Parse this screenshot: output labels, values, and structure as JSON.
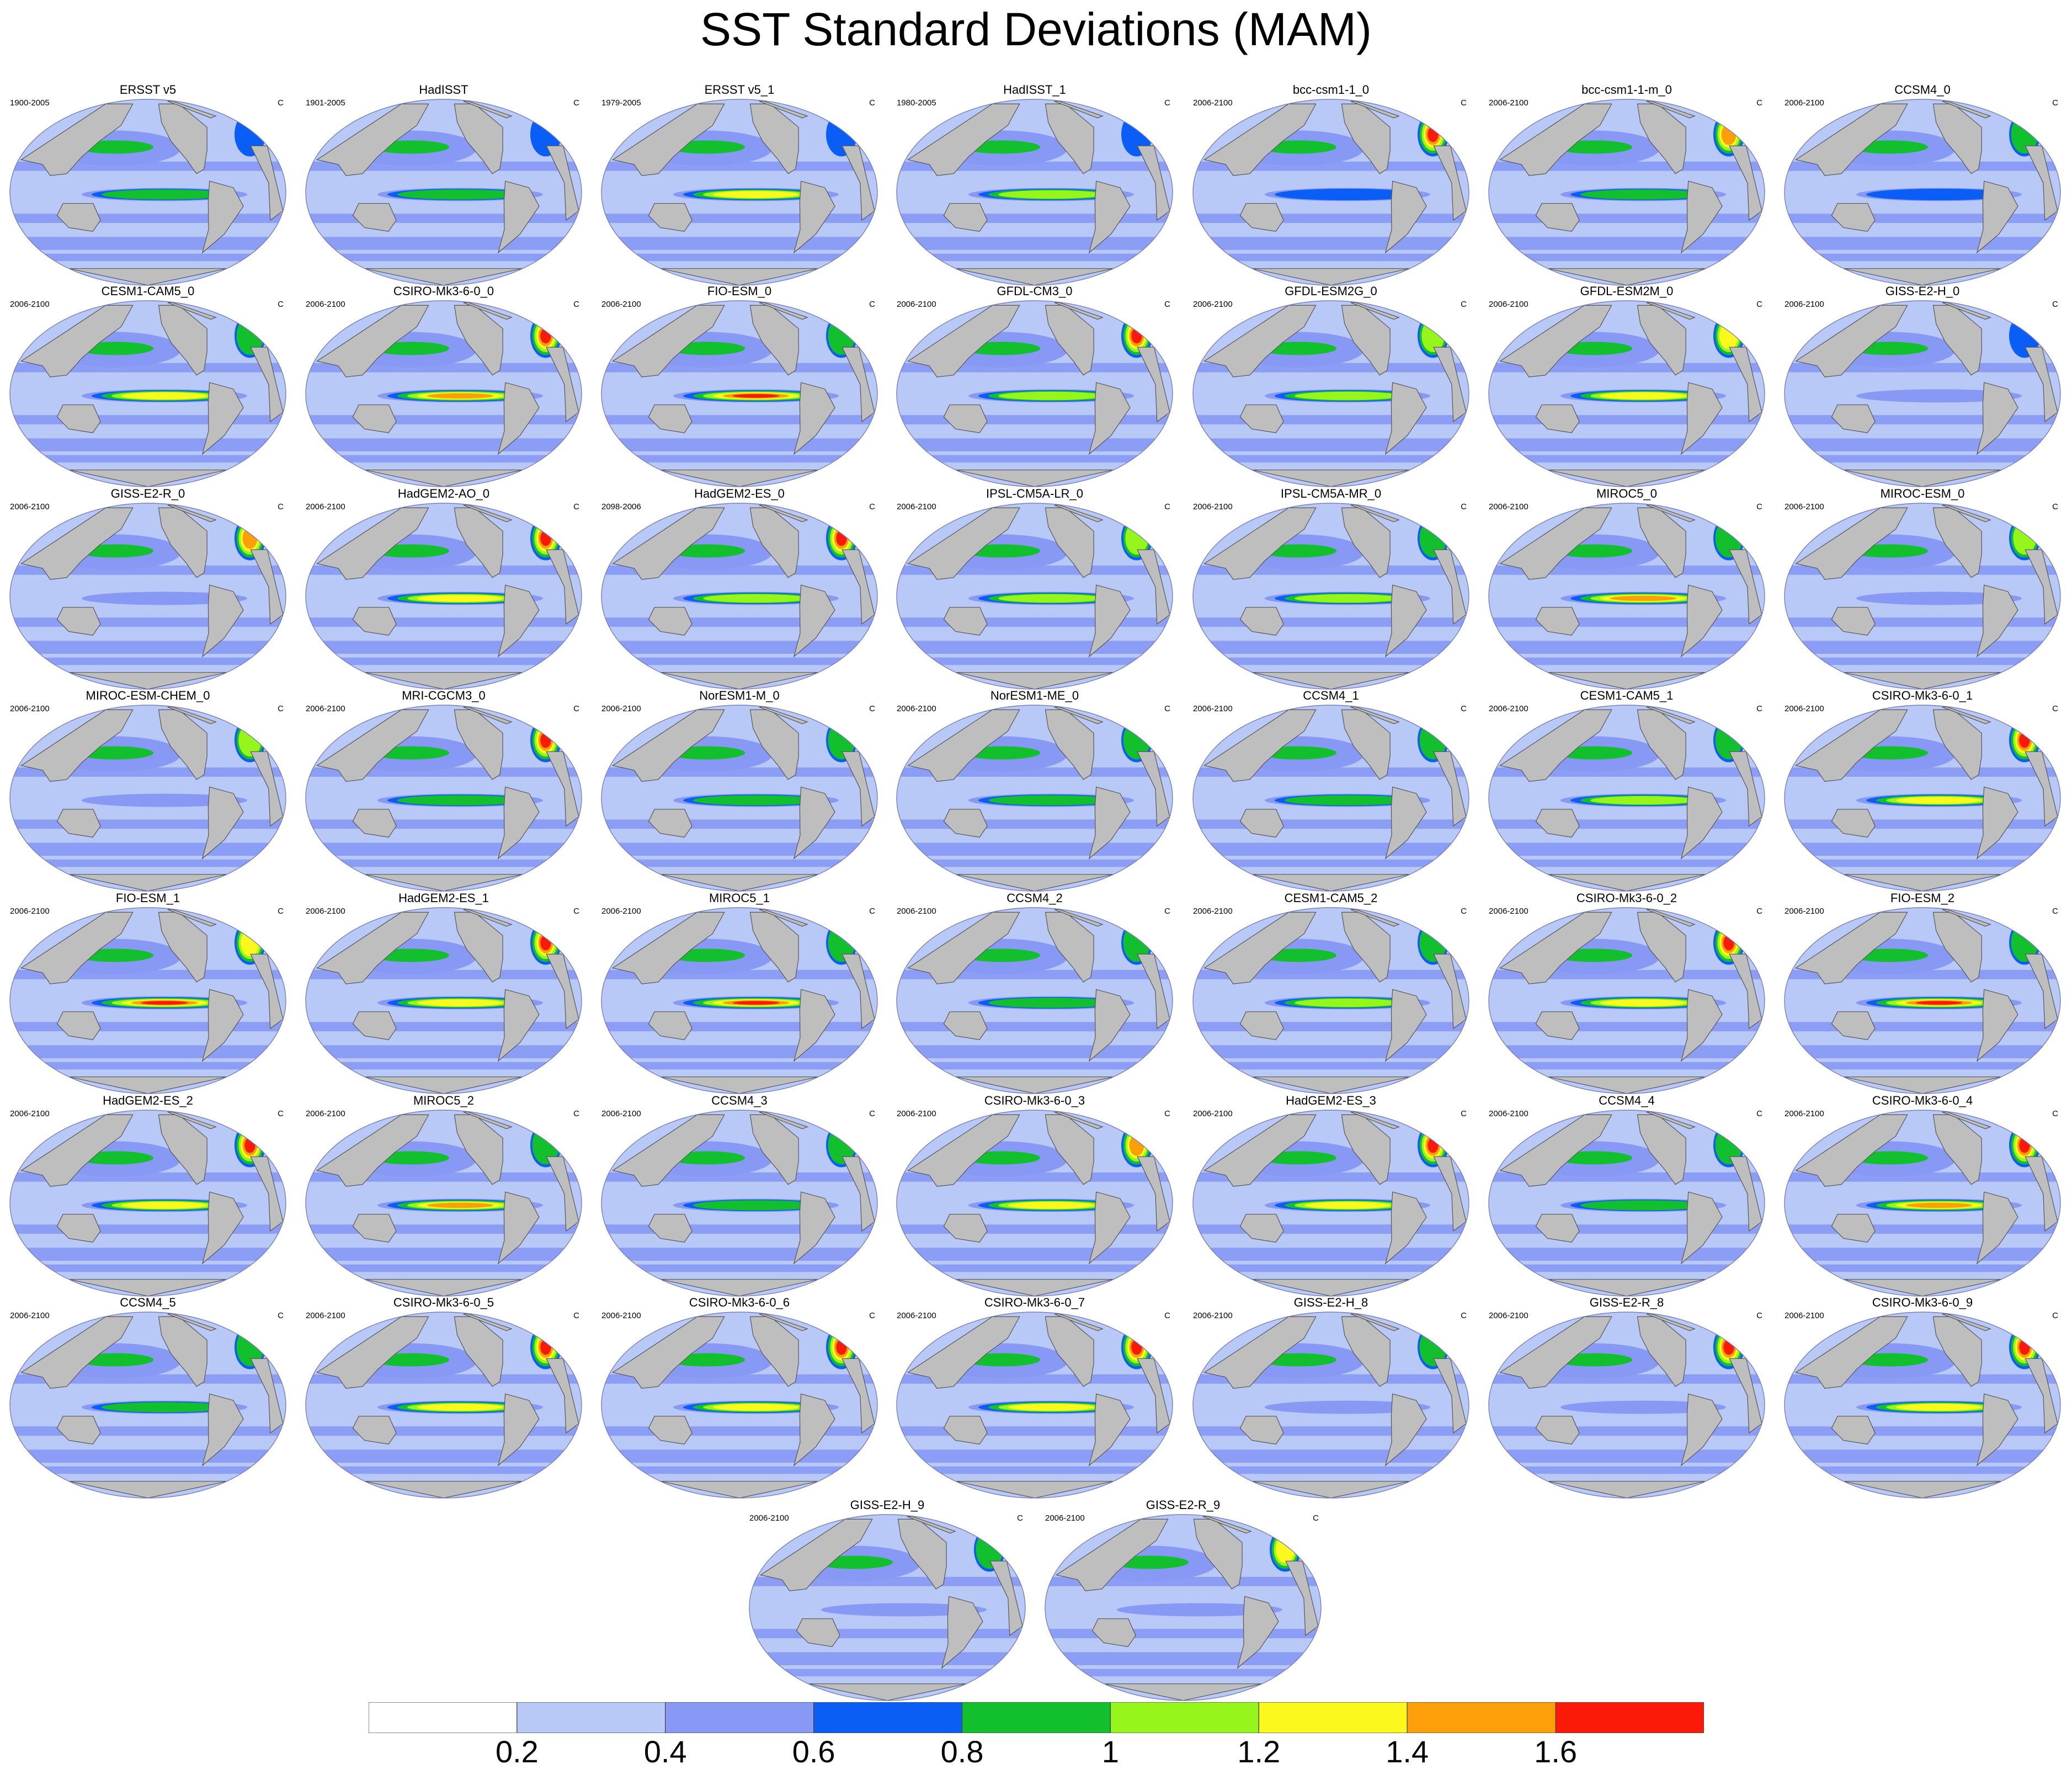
{
  "title": "SST Standard Deviations (MAM)",
  "colors": {
    "land": "#bebebe",
    "coast": "#555555",
    "levels": [
      "#ffffff",
      "#b8c9f8",
      "#8798f5",
      "#0a5df5",
      "#12bf2c",
      "#96f51a",
      "#fbf81d",
      "#fc9f09",
      "#fb1a08"
    ]
  },
  "chart_data": {
    "type": "map-panel-grid",
    "title": "SST Standard Deviations (MAM)",
    "units": "C",
    "colorbar": {
      "ticks": [
        "0.2",
        "0.4",
        "0.6",
        "0.8",
        "1",
        "1.2",
        "1.4",
        "1.6"
      ],
      "bins": [
        "<0.2",
        "0.2-0.4",
        "0.4-0.6",
        "0.6-0.8",
        "0.8-1",
        "1-1.2",
        "1.2-1.4",
        "1.4-1.6",
        ">1.6"
      ]
    },
    "panels": [
      {
        "title": "ERSST v5",
        "period": "1900-2005",
        "units": "C",
        "equatorial_max": "0.8-1",
        "north_atlantic_max": "0.6-0.8"
      },
      {
        "title": "HadISST",
        "period": "1901-2005",
        "units": "C",
        "equatorial_max": "0.8-1",
        "north_atlantic_max": "0.6-0.8"
      },
      {
        "title": "ERSST v5_1",
        "period": "1979-2005",
        "units": "C",
        "equatorial_max": "1.2-1.4",
        "north_atlantic_max": "0.6-0.8"
      },
      {
        "title": "HadISST_1",
        "period": "1980-2005",
        "units": "C",
        "equatorial_max": "1-1.2",
        "north_atlantic_max": "0.6-0.8"
      },
      {
        "title": "bcc-csm1-1_0",
        "period": "2006-2100",
        "units": "C",
        "equatorial_max": "0.6-0.8",
        "north_atlantic_max": ">1.6"
      },
      {
        "title": "bcc-csm1-1-m_0",
        "period": "2006-2100",
        "units": "C",
        "equatorial_max": "0.8-1",
        "north_atlantic_max": "1.4-1.6"
      },
      {
        "title": "CCSM4_0",
        "period": "2006-2100",
        "units": "C",
        "equatorial_max": "0.6-0.8",
        "north_atlantic_max": "0.8-1"
      },
      {
        "title": "CESM1-CAM5_0",
        "period": "2006-2100",
        "units": "C",
        "equatorial_max": "1.2-1.4",
        "north_atlantic_max": "0.8-1"
      },
      {
        "title": "CSIRO-Mk3-6-0_0",
        "period": "2006-2100",
        "units": "C",
        "equatorial_max": "1.4-1.6",
        "north_atlantic_max": ">1.6"
      },
      {
        "title": "FIO-ESM_0",
        "period": "2006-2100",
        "units": "C",
        "equatorial_max": ">1.6",
        "north_atlantic_max": "0.8-1"
      },
      {
        "title": "GFDL-CM3_0",
        "period": "2006-2100",
        "units": "C",
        "equatorial_max": "1-1.2",
        "north_atlantic_max": ">1.6"
      },
      {
        "title": "GFDL-ESM2G_0",
        "period": "2006-2100",
        "units": "C",
        "equatorial_max": "1-1.2",
        "north_atlantic_max": "1-1.2"
      },
      {
        "title": "GFDL-ESM2M_0",
        "period": "2006-2100",
        "units": "C",
        "equatorial_max": "1.2-1.4",
        "north_atlantic_max": "1.2-1.4"
      },
      {
        "title": "GISS-E2-H_0",
        "period": "2006-2100",
        "units": "C",
        "equatorial_max": "0.4-0.6",
        "north_atlantic_max": "0.6-0.8"
      },
      {
        "title": "GISS-E2-R_0",
        "period": "2006-2100",
        "units": "C",
        "equatorial_max": "0.4-0.6",
        "north_atlantic_max": "1.4-1.6"
      },
      {
        "title": "HadGEM2-AO_0",
        "period": "2006-2100",
        "units": "C",
        "equatorial_max": "1.2-1.4",
        "north_atlantic_max": ">1.6"
      },
      {
        "title": "HadGEM2-ES_0",
        "period": "2098-2006",
        "units": "C",
        "equatorial_max": "1-1.2",
        "north_atlantic_max": ">1.6"
      },
      {
        "title": "IPSL-CM5A-LR_0",
        "period": "2006-2100",
        "units": "C",
        "equatorial_max": "1-1.2",
        "north_atlantic_max": "1-1.2"
      },
      {
        "title": "IPSL-CM5A-MR_0",
        "period": "2006-2100",
        "units": "C",
        "equatorial_max": "1-1.2",
        "north_atlantic_max": "0.8-1"
      },
      {
        "title": "MIROC5_0",
        "period": "2006-2100",
        "units": "C",
        "equatorial_max": "1.4-1.6",
        "north_atlantic_max": "0.8-1"
      },
      {
        "title": "MIROC-ESM_0",
        "period": "2006-2100",
        "units": "C",
        "equatorial_max": "0.4-0.6",
        "north_atlantic_max": "1-1.2"
      },
      {
        "title": "MIROC-ESM-CHEM_0",
        "period": "2006-2100",
        "units": "C",
        "equatorial_max": "0.4-0.6",
        "north_atlantic_max": "1-1.2"
      },
      {
        "title": "MRI-CGCM3_0",
        "period": "2006-2100",
        "units": "C",
        "equatorial_max": "0.8-1",
        "north_atlantic_max": ">1.6"
      },
      {
        "title": "NorESM1-M_0",
        "period": "2006-2100",
        "units": "C",
        "equatorial_max": "0.8-1",
        "north_atlantic_max": "0.8-1"
      },
      {
        "title": "NorESM1-ME_0",
        "period": "2006-2100",
        "units": "C",
        "equatorial_max": "0.8-1",
        "north_atlantic_max": "0.8-1"
      },
      {
        "title": "CCSM4_1",
        "period": "2006-2100",
        "units": "C",
        "equatorial_max": "0.8-1",
        "north_atlantic_max": "0.8-1"
      },
      {
        "title": "CESM1-CAM5_1",
        "period": "2006-2100",
        "units": "C",
        "equatorial_max": "1-1.2",
        "north_atlantic_max": "0.8-1"
      },
      {
        "title": "CSIRO-Mk3-6-0_1",
        "period": "2006-2100",
        "units": "C",
        "equatorial_max": "1.2-1.4",
        "north_atlantic_max": ">1.6"
      },
      {
        "title": "FIO-ESM_1",
        "period": "2006-2100",
        "units": "C",
        "equatorial_max": ">1.6",
        "north_atlantic_max": "1.2-1.4"
      },
      {
        "title": "HadGEM2-ES_1",
        "period": "2006-2100",
        "units": "C",
        "equatorial_max": "1.2-1.4",
        "north_atlantic_max": ">1.6"
      },
      {
        "title": "MIROC5_1",
        "period": "2006-2100",
        "units": "C",
        "equatorial_max": ">1.6",
        "north_atlantic_max": "0.8-1"
      },
      {
        "title": "CCSM4_2",
        "period": "2006-2100",
        "units": "C",
        "equatorial_max": "0.8-1",
        "north_atlantic_max": "0.8-1"
      },
      {
        "title": "CESM1-CAM5_2",
        "period": "2006-2100",
        "units": "C",
        "equatorial_max": "1-1.2",
        "north_atlantic_max": "0.8-1"
      },
      {
        "title": "CSIRO-Mk3-6-0_2",
        "period": "2006-2100",
        "units": "C",
        "equatorial_max": "1.2-1.4",
        "north_atlantic_max": ">1.6"
      },
      {
        "title": "FIO-ESM_2",
        "period": "2006-2100",
        "units": "C",
        "equatorial_max": ">1.6",
        "north_atlantic_max": "0.8-1"
      },
      {
        "title": "HadGEM2-ES_2",
        "period": "2006-2100",
        "units": "C",
        "equatorial_max": "1.2-1.4",
        "north_atlantic_max": ">1.6"
      },
      {
        "title": "MIROC5_2",
        "period": "2006-2100",
        "units": "C",
        "equatorial_max": "1.4-1.6",
        "north_atlantic_max": "0.8-1"
      },
      {
        "title": "CCSM4_3",
        "period": "2006-2100",
        "units": "C",
        "equatorial_max": "0.8-1",
        "north_atlantic_max": "0.8-1"
      },
      {
        "title": "CSIRO-Mk3-6-0_3",
        "period": "2006-2100",
        "units": "C",
        "equatorial_max": "1.2-1.4",
        "north_atlantic_max": "1.4-1.6"
      },
      {
        "title": "HadGEM2-ES_3",
        "period": "2006-2100",
        "units": "C",
        "equatorial_max": "1.2-1.4",
        "north_atlantic_max": ">1.6"
      },
      {
        "title": "CCSM4_4",
        "period": "2006-2100",
        "units": "C",
        "equatorial_max": "0.8-1",
        "north_atlantic_max": "0.8-1"
      },
      {
        "title": "CSIRO-Mk3-6-0_4",
        "period": "2006-2100",
        "units": "C",
        "equatorial_max": "1.4-1.6",
        "north_atlantic_max": ">1.6"
      },
      {
        "title": "CCSM4_5",
        "period": "2006-2100",
        "units": "C",
        "equatorial_max": "0.8-1",
        "north_atlantic_max": "0.8-1"
      },
      {
        "title": "CSIRO-Mk3-6-0_5",
        "period": "2006-2100",
        "units": "C",
        "equatorial_max": "1.2-1.4",
        "north_atlantic_max": ">1.6"
      },
      {
        "title": "CSIRO-Mk3-6-0_6",
        "period": "2006-2100",
        "units": "C",
        "equatorial_max": "1.2-1.4",
        "north_atlantic_max": ">1.6"
      },
      {
        "title": "CSIRO-Mk3-6-0_7",
        "period": "2006-2100",
        "units": "C",
        "equatorial_max": "1.2-1.4",
        "north_atlantic_max": ">1.6"
      },
      {
        "title": "GISS-E2-H_8",
        "period": "2006-2100",
        "units": "C",
        "equatorial_max": "0.4-0.6",
        "north_atlantic_max": "0.8-1"
      },
      {
        "title": "GISS-E2-R_8",
        "period": "2006-2100",
        "units": "C",
        "equatorial_max": "0.4-0.6",
        "north_atlantic_max": ">1.6"
      },
      {
        "title": "CSIRO-Mk3-6-0_9",
        "period": "2006-2100",
        "units": "C",
        "equatorial_max": "1.2-1.4",
        "north_atlantic_max": ">1.6"
      },
      {
        "title": "GISS-E2-H_9",
        "period": "2006-2100",
        "units": "C",
        "equatorial_max": "0.4-0.6",
        "north_atlantic_max": "0.8-1"
      },
      {
        "title": "GISS-E2-R_9",
        "period": "2006-2100",
        "units": "C",
        "equatorial_max": "0.4-0.6",
        "north_atlantic_max": "1.2-1.4"
      }
    ]
  }
}
